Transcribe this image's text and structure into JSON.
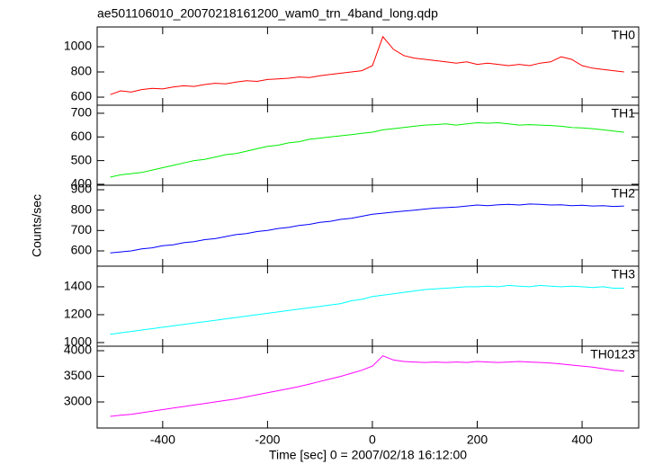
{
  "chart_data": [
    {
      "type": "line",
      "title": "ae501106010_20070218161200_wam0_trn_4band_long.qdp",
      "series": [
        {
          "name": "TH0",
          "color": "#ff0000",
          "values": [
            620,
            650,
            640,
            660,
            670,
            665,
            680,
            690,
            685,
            700,
            710,
            705,
            720,
            730,
            725,
            740,
            745,
            750,
            760,
            755,
            770,
            780,
            790,
            800,
            810,
            850,
            1080,
            980,
            930,
            910,
            900,
            890,
            880,
            870,
            880,
            860,
            870,
            860,
            850,
            860,
            850,
            870,
            880,
            920,
            900,
            850,
            830,
            820,
            810,
            800
          ]
        }
      ],
      "ylim": [
        536,
        1157
      ],
      "yticks": [
        600,
        800,
        1000
      ]
    },
    {
      "type": "line",
      "series": [
        {
          "name": "TH1",
          "color": "#00ee00",
          "values": [
            430,
            440,
            445,
            450,
            460,
            470,
            480,
            490,
            500,
            505,
            515,
            525,
            530,
            540,
            550,
            560,
            565,
            575,
            580,
            590,
            595,
            600,
            605,
            610,
            615,
            620,
            630,
            635,
            640,
            645,
            650,
            652,
            655,
            650,
            655,
            660,
            658,
            660,
            655,
            650,
            652,
            650,
            648,
            645,
            640,
            638,
            635,
            630,
            625,
            620
          ]
        }
      ],
      "ylim": [
        396,
        734
      ],
      "yticks": [
        400,
        500,
        600,
        700
      ]
    },
    {
      "type": "line",
      "ylabel": "Counts/sec",
      "series": [
        {
          "name": "TH2",
          "color": "#0000ff",
          "values": [
            590,
            595,
            600,
            610,
            615,
            625,
            630,
            640,
            645,
            655,
            660,
            670,
            680,
            685,
            695,
            700,
            710,
            715,
            725,
            730,
            740,
            745,
            755,
            760,
            770,
            780,
            785,
            790,
            795,
            800,
            805,
            810,
            812,
            815,
            820,
            825,
            822,
            826,
            828,
            825,
            830,
            828,
            825,
            826,
            822,
            824,
            820,
            822,
            818,
            820
          ]
        }
      ],
      "ylim": [
        525,
        922
      ],
      "yticks": [
        600,
        700,
        800,
        900
      ]
    },
    {
      "type": "line",
      "series": [
        {
          "name": "TH3",
          "color": "#00ffff",
          "values": [
            1060,
            1070,
            1080,
            1090,
            1100,
            1110,
            1120,
            1130,
            1140,
            1150,
            1160,
            1170,
            1180,
            1190,
            1200,
            1210,
            1220,
            1230,
            1240,
            1250,
            1260,
            1270,
            1280,
            1300,
            1310,
            1330,
            1340,
            1350,
            1360,
            1370,
            1380,
            1385,
            1390,
            1395,
            1400,
            1400,
            1405,
            1400,
            1410,
            1405,
            1400,
            1410,
            1405,
            1400,
            1405,
            1400,
            1395,
            1400,
            1390,
            1390
          ]
        }
      ],
      "ylim": [
        974,
        1548
      ],
      "yticks": [
        1000,
        1200,
        1400
      ]
    },
    {
      "type": "line",
      "xlabel": "Time [sec] 0 = 2007/02/18 16:12:00",
      "x": [
        -500,
        -480,
        -460,
        -440,
        -420,
        -400,
        -380,
        -360,
        -340,
        -320,
        -300,
        -280,
        -260,
        -240,
        -220,
        -200,
        -180,
        -160,
        -140,
        -120,
        -100,
        -80,
        -60,
        -40,
        -20,
        0,
        20,
        40,
        60,
        80,
        100,
        120,
        140,
        160,
        180,
        200,
        220,
        240,
        260,
        280,
        300,
        320,
        340,
        360,
        380,
        400,
        420,
        440,
        460,
        480
      ],
      "xlim": [
        -525,
        508
      ],
      "xticks": [
        -400,
        -200,
        0,
        200,
        400
      ],
      "series": [
        {
          "name": "TH0123",
          "color": "#ff00ff",
          "values": [
            2720,
            2740,
            2760,
            2790,
            2820,
            2850,
            2880,
            2910,
            2940,
            2970,
            3000,
            3030,
            3060,
            3100,
            3140,
            3180,
            3220,
            3260,
            3300,
            3350,
            3400,
            3450,
            3500,
            3560,
            3620,
            3700,
            3900,
            3820,
            3790,
            3780,
            3770,
            3780,
            3770,
            3780,
            3770,
            3790,
            3780,
            3770,
            3780,
            3790,
            3780,
            3770,
            3760,
            3740,
            3720,
            3700,
            3680,
            3650,
            3620,
            3600
          ]
        }
      ],
      "ylim": [
        2491,
        4088
      ],
      "yticks": [
        3000,
        3500,
        4000
      ]
    }
  ]
}
